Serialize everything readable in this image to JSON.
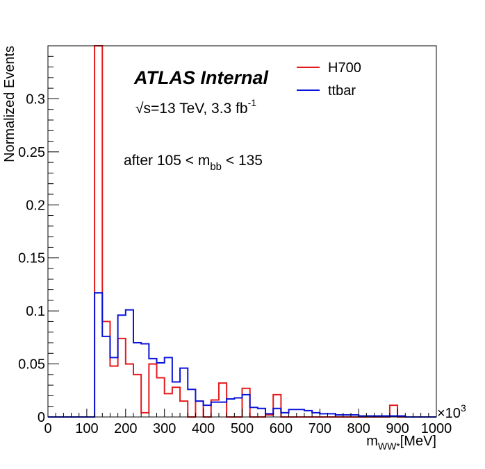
{
  "chart_data": {
    "type": "histogram",
    "ylabel": "Normalized Events",
    "xlabel_main": "m",
    "xlabel_sub": "WW*",
    "xlabel_unit": "[MeV]",
    "x_multiplier": "×10",
    "x_multiplier_exp": "3",
    "xlim": [
      0,
      1000
    ],
    "ylim": [
      0,
      0.35
    ],
    "x_ticks": [
      0,
      100,
      200,
      300,
      400,
      500,
      600,
      700,
      800,
      900,
      1000
    ],
    "y_ticks": [
      0,
      0.05,
      0.1,
      0.15,
      0.2,
      0.25,
      0.3
    ],
    "x_tick_labels": [
      "0",
      "100",
      "200",
      "300",
      "400",
      "500",
      "600",
      "700",
      "800",
      "900",
      "1000"
    ],
    "y_tick_labels": [
      "0",
      "0.05",
      "0.1",
      "0.15",
      "0.2",
      "0.25",
      "0.3"
    ],
    "bin_width": 20,
    "annotations": {
      "atlas_label": "ATLAS Internal",
      "energy_prefix": "√s=13 TeV, 3.3 fb",
      "energy_exp": "-1",
      "cut_prefix": "after 105 < m",
      "cut_sub": "bb",
      "cut_suffix": " < 135"
    },
    "legend_position": "top-right",
    "series": [
      {
        "name": "H700",
        "color": "#e41a1c",
        "values": [
          0,
          0,
          0,
          0,
          0,
          0,
          0.35,
          0.09,
          0.048,
          0.074,
          0.05,
          0.04,
          0.004,
          0.05,
          0.037,
          0.022,
          0.028,
          0.015,
          0,
          0.015,
          0,
          0.016,
          0.032,
          0,
          0,
          0.027,
          0,
          0,
          0.002,
          0.021,
          0,
          0,
          0,
          0,
          0,
          0,
          0,
          0,
          0,
          0,
          0,
          0,
          0,
          0,
          0.011,
          0,
          0,
          0,
          0,
          0
        ]
      },
      {
        "name": "ttbar",
        "color": "#0a14d8",
        "values": [
          0,
          0,
          0,
          0,
          0,
          0,
          0.117,
          0.076,
          0.056,
          0.096,
          0.101,
          0.07,
          0.069,
          0.055,
          0.051,
          0.056,
          0.033,
          0.046,
          0.026,
          0.015,
          0.011,
          0.014,
          0.014,
          0.017,
          0.018,
          0.021,
          0.009,
          0.008,
          0.003,
          0.008,
          0.004,
          0.007,
          0.007,
          0.006,
          0.004,
          0.003,
          0.003,
          0.002,
          0.002,
          0.002,
          0.001,
          0.001,
          0.001,
          0.001,
          0.001,
          0.001,
          0,
          0,
          0,
          0
        ]
      }
    ]
  }
}
